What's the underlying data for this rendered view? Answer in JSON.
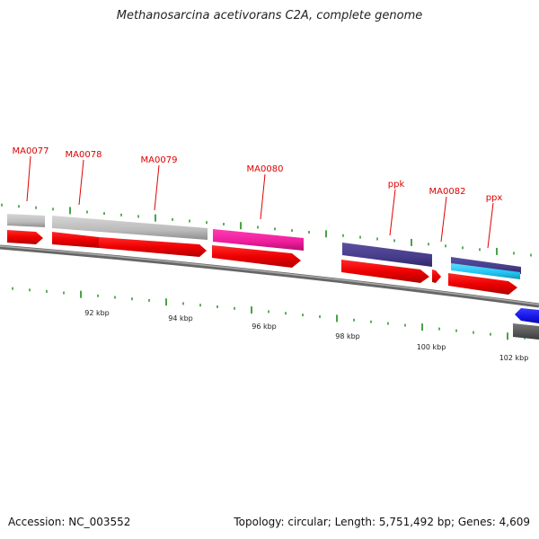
{
  "title": "Methanosarcina acetivorans C2A, complete genome",
  "footer": {
    "accession": "Accession: NC_003552",
    "summary": "Topology: circular; Length: 5,751,492 bp; Genes: 4,609"
  },
  "colors": {
    "cds_red": "#ee0000",
    "gene_grey": "#bbbbbb",
    "gene_pink": "#ee1c9c",
    "gene_indigo": "#463c8a",
    "gene_cyan": "#21c3f0",
    "gene_blue": "#1414e6",
    "label_red": "#dd0000",
    "tick_green": "#1a8c1a",
    "backbone": "#888888"
  },
  "scale": {
    "unit": "kbp",
    "ticks": [
      {
        "label": "92 kbp"
      },
      {
        "label": "94 kbp"
      },
      {
        "label": "96 kbp"
      },
      {
        "label": "98 kbp"
      },
      {
        "label": "100 kbp"
      },
      {
        "label": "102 kbp"
      }
    ]
  },
  "genes": [
    {
      "label": "MA0077"
    },
    {
      "label": "MA0078"
    },
    {
      "label": "MA0079"
    },
    {
      "label": "MA0080"
    },
    {
      "label": "ppk"
    },
    {
      "label": "MA0082"
    },
    {
      "label": "ppx"
    }
  ]
}
